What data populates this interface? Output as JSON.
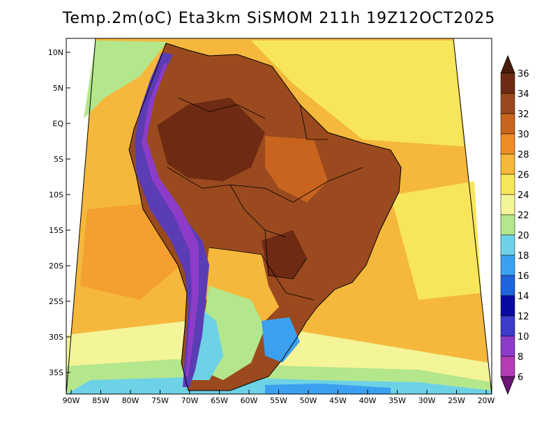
{
  "title": "Temp.2m(oC) Eta3km SiSMOM 211h 19Z12OCT2025",
  "map": {
    "lat_labels": [
      "10N",
      "5N",
      "EQ",
      "5S",
      "10S",
      "15S",
      "20S",
      "25S",
      "30S",
      "35S"
    ],
    "lon_labels": [
      "90W",
      "85W",
      "80W",
      "75W",
      "70W",
      "65W",
      "60W",
      "55W",
      "50W",
      "45W",
      "40W",
      "35W",
      "30W",
      "25W",
      "20W"
    ]
  },
  "colorbar": {
    "levels": [
      "36",
      "34",
      "32",
      "30",
      "28",
      "26",
      "24",
      "22",
      "20",
      "18",
      "16",
      "14",
      "12",
      "10",
      "8",
      "6"
    ],
    "colors": [
      "#4a1a0a",
      "#6e2a12",
      "#9a4a1e",
      "#c8641e",
      "#f08c28",
      "#f5b83c",
      "#f7e65a",
      "#f4f498",
      "#b4e68c",
      "#6ed2e6",
      "#3ca0f0",
      "#1e64dc",
      "#0a0aa0",
      "#3c3cc8",
      "#8c3cc8",
      "#b43cb4",
      "#6e1478"
    ]
  },
  "colors": {
    "ocean_warm": "#f5b83c",
    "ocean_mild": "#f7e65a",
    "land_hot": "#9a4a1e",
    "andes_cold": "#5a3cb4"
  }
}
